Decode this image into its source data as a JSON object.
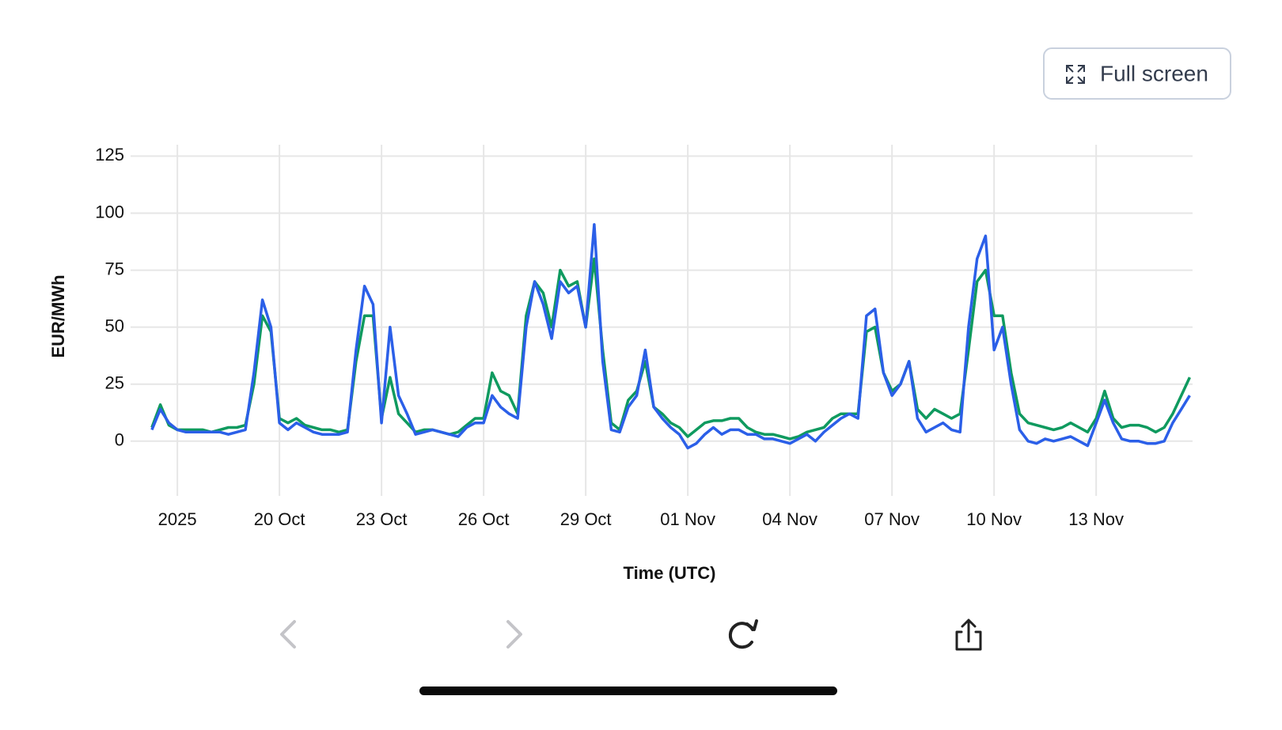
{
  "full_screen_button": "Full screen",
  "chart_data": {
    "type": "line",
    "y_label": "EUR/MWh",
    "x_label": "Time (UTC)",
    "grid": true,
    "xlim": [
      "2025-10-15T15:00",
      "2025-11-15T20:00"
    ],
    "ylim": [
      -24,
      130
    ],
    "yticks": [
      0,
      25,
      50,
      75,
      100,
      125
    ],
    "xticks": [
      {
        "value": "2025-10-17",
        "label": "2025"
      },
      {
        "value": "2025-10-20",
        "label": "20 Oct"
      },
      {
        "value": "2025-10-23",
        "label": "23 Oct"
      },
      {
        "value": "2025-10-26",
        "label": "26 Oct"
      },
      {
        "value": "2025-10-29",
        "label": "29 Oct"
      },
      {
        "value": "2025-11-01",
        "label": "01 Nov"
      },
      {
        "value": "2025-11-04",
        "label": "04 Nov"
      },
      {
        "value": "2025-11-07",
        "label": "07 Nov"
      },
      {
        "value": "2025-11-10",
        "label": "10 Nov"
      },
      {
        "value": "2025-11-13",
        "label": "13 Nov"
      }
    ],
    "x": [
      "2025-10-16T06:00",
      "2025-10-16T12:00",
      "2025-10-16T18:00",
      "2025-10-17T00:00",
      "2025-10-17T06:00",
      "2025-10-17T12:00",
      "2025-10-17T18:00",
      "2025-10-18T00:00",
      "2025-10-18T06:00",
      "2025-10-18T12:00",
      "2025-10-18T18:00",
      "2025-10-19T00:00",
      "2025-10-19T06:00",
      "2025-10-19T12:00",
      "2025-10-19T18:00",
      "2025-10-20T00:00",
      "2025-10-20T06:00",
      "2025-10-20T12:00",
      "2025-10-20T18:00",
      "2025-10-21T00:00",
      "2025-10-21T06:00",
      "2025-10-21T12:00",
      "2025-10-21T18:00",
      "2025-10-22T00:00",
      "2025-10-22T06:00",
      "2025-10-22T12:00",
      "2025-10-22T18:00",
      "2025-10-23T00:00",
      "2025-10-23T06:00",
      "2025-10-23T12:00",
      "2025-10-23T18:00",
      "2025-10-24T00:00",
      "2025-10-24T06:00",
      "2025-10-24T12:00",
      "2025-10-24T18:00",
      "2025-10-25T00:00",
      "2025-10-25T06:00",
      "2025-10-25T12:00",
      "2025-10-25T18:00",
      "2025-10-26T00:00",
      "2025-10-26T06:00",
      "2025-10-26T12:00",
      "2025-10-26T18:00",
      "2025-10-27T00:00",
      "2025-10-27T06:00",
      "2025-10-27T12:00",
      "2025-10-27T18:00",
      "2025-10-28T00:00",
      "2025-10-28T06:00",
      "2025-10-28T12:00",
      "2025-10-28T18:00",
      "2025-10-29T00:00",
      "2025-10-29T06:00",
      "2025-10-29T12:00",
      "2025-10-29T18:00",
      "2025-10-30T00:00",
      "2025-10-30T06:00",
      "2025-10-30T12:00",
      "2025-10-30T18:00",
      "2025-10-31T00:00",
      "2025-10-31T06:00",
      "2025-10-31T12:00",
      "2025-10-31T18:00",
      "2025-11-01T00:00",
      "2025-11-01T06:00",
      "2025-11-01T12:00",
      "2025-11-01T18:00",
      "2025-11-02T00:00",
      "2025-11-02T06:00",
      "2025-11-02T12:00",
      "2025-11-02T18:00",
      "2025-11-03T00:00",
      "2025-11-03T06:00",
      "2025-11-03T12:00",
      "2025-11-03T18:00",
      "2025-11-04T00:00",
      "2025-11-04T06:00",
      "2025-11-04T12:00",
      "2025-11-04T18:00",
      "2025-11-05T00:00",
      "2025-11-05T06:00",
      "2025-11-05T12:00",
      "2025-11-05T18:00",
      "2025-11-06T00:00",
      "2025-11-06T06:00",
      "2025-11-06T12:00",
      "2025-11-06T18:00",
      "2025-11-07T00:00",
      "2025-11-07T06:00",
      "2025-11-07T12:00",
      "2025-11-07T18:00",
      "2025-11-08T00:00",
      "2025-11-08T06:00",
      "2025-11-08T12:00",
      "2025-11-08T18:00",
      "2025-11-09T00:00",
      "2025-11-09T06:00",
      "2025-11-09T12:00",
      "2025-11-09T18:00",
      "2025-11-10T00:00",
      "2025-11-10T06:00",
      "2025-11-10T12:00",
      "2025-11-10T18:00",
      "2025-11-11T00:00",
      "2025-11-11T06:00",
      "2025-11-11T12:00",
      "2025-11-11T18:00",
      "2025-11-12T00:00",
      "2025-11-12T06:00",
      "2025-11-12T12:00",
      "2025-11-12T18:00",
      "2025-11-13T00:00",
      "2025-11-13T06:00",
      "2025-11-13T12:00",
      "2025-11-13T18:00",
      "2025-11-14T00:00",
      "2025-11-14T06:00",
      "2025-11-14T12:00",
      "2025-11-14T18:00",
      "2025-11-15T00:00",
      "2025-11-15T06:00",
      "2025-11-15T12:00",
      "2025-11-15T18:00"
    ],
    "series": [
      {
        "color": "#0f9a5f",
        "values": [
          6,
          16,
          7,
          5,
          5,
          5,
          5,
          4,
          5,
          6,
          6,
          7,
          25,
          55,
          48,
          10,
          8,
          10,
          7,
          6,
          5,
          5,
          4,
          5,
          35,
          55,
          55,
          10,
          28,
          12,
          8,
          4,
          5,
          5,
          4,
          3,
          4,
          7,
          10,
          10,
          30,
          22,
          20,
          12,
          55,
          70,
          65,
          50,
          75,
          68,
          70,
          50,
          80,
          40,
          8,
          5,
          18,
          22,
          35,
          15,
          12,
          8,
          6,
          2,
          5,
          8,
          9,
          9,
          10,
          10,
          6,
          4,
          3,
          3,
          2,
          1,
          2,
          4,
          5,
          6,
          10,
          12,
          12,
          12,
          48,
          50,
          30,
          22,
          25,
          35,
          14,
          10,
          14,
          12,
          10,
          12,
          40,
          70,
          75,
          55,
          55,
          30,
          12,
          8,
          7,
          6,
          5,
          6,
          8,
          6,
          4,
          10,
          22,
          10,
          6,
          7,
          7,
          6,
          4,
          6,
          12,
          20,
          28
        ]
      },
      {
        "color": "#2b5fe8",
        "values": [
          5,
          14,
          8,
          5,
          4,
          4,
          4,
          4,
          4,
          3,
          4,
          5,
          30,
          62,
          50,
          8,
          5,
          8,
          6,
          4,
          3,
          3,
          3,
          4,
          40,
          68,
          60,
          8,
          50,
          20,
          12,
          3,
          4,
          5,
          4,
          3,
          2,
          6,
          8,
          8,
          20,
          15,
          12,
          10,
          50,
          70,
          60,
          45,
          70,
          65,
          68,
          50,
          95,
          35,
          5,
          4,
          15,
          20,
          40,
          15,
          10,
          6,
          3,
          -3,
          -1,
          3,
          6,
          3,
          5,
          5,
          3,
          3,
          1,
          1,
          0,
          -1,
          1,
          3,
          0,
          4,
          7,
          10,
          12,
          10,
          55,
          58,
          30,
          20,
          25,
          35,
          10,
          4,
          6,
          8,
          5,
          4,
          50,
          80,
          90,
          40,
          50,
          25,
          5,
          0,
          -1,
          1,
          0,
          1,
          2,
          0,
          -2,
          8,
          18,
          8,
          1,
          0,
          0,
          -1,
          -1,
          0,
          8,
          14,
          20
        ]
      }
    ]
  }
}
